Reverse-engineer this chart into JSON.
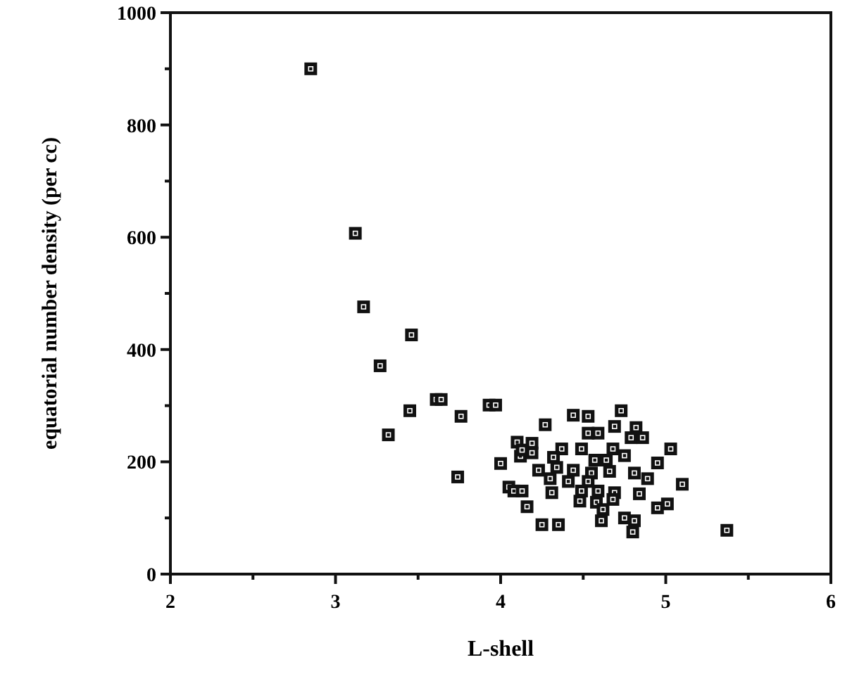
{
  "chart_data": {
    "type": "scatter",
    "xlabel": "L-shell",
    "ylabel": "equatorial number density (per cc)",
    "marker": "square",
    "grid": false,
    "xlim": [
      2,
      6
    ],
    "xticks": [
      2,
      {
        "value": 2.5,
        "label": null
      },
      3,
      {
        "value": 3.5,
        "label": null
      },
      4,
      {
        "value": 4.5,
        "label": null
      },
      5,
      {
        "value": 5.5,
        "label": null
      },
      6
    ],
    "ylim": [
      0,
      1000
    ],
    "yticks": [
      0,
      {
        "value": 100,
        "label": null
      },
      200,
      {
        "value": 300,
        "label": null
      },
      400,
      {
        "value": 500,
        "label": null
      },
      600,
      {
        "value": 700,
        "label": null
      },
      800,
      {
        "value": 900,
        "label": null
      },
      1000
    ],
    "series": [
      {
        "color": "#111111",
        "x": [
          2.85,
          3.12,
          3.17,
          3.27,
          3.46,
          3.45,
          3.32,
          3.61,
          3.64,
          3.76,
          3.74,
          3.93,
          3.97,
          4.0,
          4.05,
          4.08,
          4.1,
          4.12,
          4.27,
          4.44,
          4.53,
          4.73,
          4.53,
          4.59,
          4.69,
          4.82,
          4.79,
          4.86,
          5.03,
          4.19,
          4.19,
          4.13,
          4.37,
          4.49,
          4.68,
          4.75,
          4.32,
          4.57,
          4.64,
          4.95,
          4.23,
          4.34,
          4.44,
          4.55,
          4.66,
          4.81,
          4.89,
          4.3,
          4.41,
          4.53,
          5.1,
          4.13,
          4.31,
          4.49,
          4.59,
          4.69,
          4.84,
          4.48,
          4.58,
          4.68,
          4.16,
          4.95,
          5.01,
          4.62,
          4.75,
          4.81,
          4.61,
          4.25,
          4.35,
          4.8,
          5.37
        ],
        "values": [
          900,
          607,
          476,
          371,
          426,
          291,
          248,
          311,
          311,
          281,
          173,
          301,
          301,
          197,
          155,
          148,
          235,
          210,
          266,
          283,
          281,
          291,
          251,
          251,
          263,
          261,
          243,
          243,
          223,
          233,
          216,
          221,
          223,
          223,
          223,
          211,
          208,
          203,
          203,
          198,
          185,
          190,
          185,
          180,
          183,
          180,
          170,
          170,
          165,
          165,
          160,
          148,
          145,
          148,
          148,
          145,
          143,
          130,
          128,
          133,
          120,
          118,
          125,
          115,
          100,
          95,
          95,
          88,
          88,
          75,
          78
        ]
      }
    ]
  }
}
